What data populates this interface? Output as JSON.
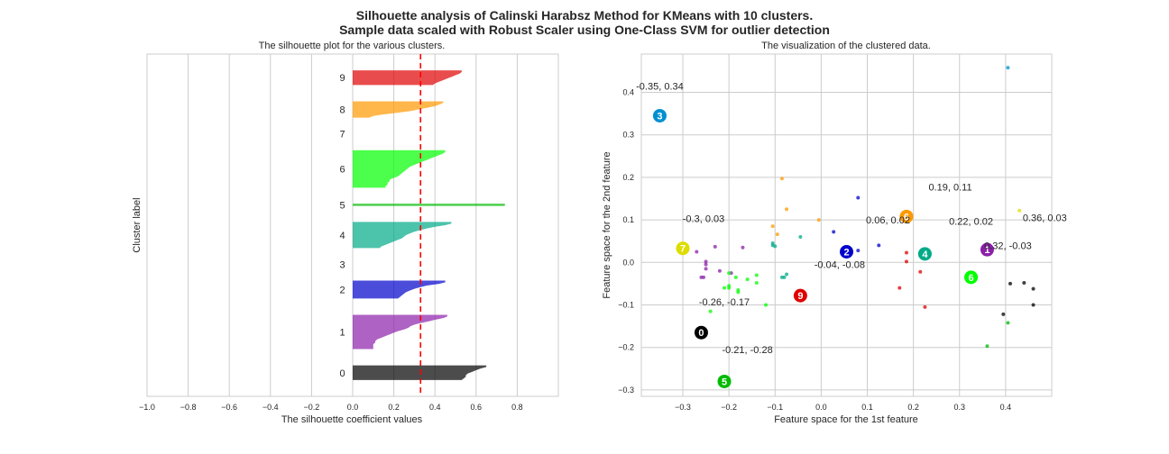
{
  "figure": {
    "title_line1": "Silhouette analysis of Calinski Harabsz Method for KMeans with 10 clusters.",
    "title_line2": "Sample data scaled with Robust Scaler using One-Class SVM for outlier detection"
  },
  "chart_data": [
    {
      "type": "bar",
      "title": "The silhouette plot for the various clusters.",
      "xlabel": "The silhouette coefficient values",
      "ylabel": "Cluster label",
      "xlim": [
        -1.0,
        1.0
      ],
      "xticks": [
        -1.0,
        -0.8,
        -0.6,
        -0.4,
        -0.2,
        0.0,
        0.2,
        0.4,
        0.6,
        0.8
      ],
      "xtick_labels": [
        "−1.0",
        "−0.8",
        "−0.6",
        "−0.4",
        "−0.2",
        "0.0",
        "0.2",
        "0.4",
        "0.6",
        "0.8"
      ],
      "grid": true,
      "average_silhouette": 0.33,
      "average_line_color": "#ff0000",
      "clusters": [
        {
          "label": "0",
          "color": "#000000",
          "values": [
            0.65,
            0.62,
            0.6,
            0.58,
            0.56,
            0.55,
            0.55,
            0.54,
            0.53
          ]
        },
        {
          "label": "1",
          "color": "#8b1fa9",
          "values": [
            0.46,
            0.44,
            0.4,
            0.37,
            0.33,
            0.3,
            0.28,
            0.27,
            0.25,
            0.22,
            0.2,
            0.18,
            0.16,
            0.14,
            0.12,
            0.11,
            0.11,
            0.1,
            0.1,
            0.1,
            0.1
          ]
        },
        {
          "label": "2",
          "color": "#0000cc",
          "values": [
            0.45,
            0.42,
            0.36,
            0.33,
            0.3,
            0.28,
            0.26,
            0.25,
            0.24,
            0.23,
            0.22
          ]
        },
        {
          "label": "3",
          "color": "#0090d0",
          "values": []
        },
        {
          "label": "4",
          "color": "#00aa88",
          "values": [
            0.48,
            0.45,
            0.4,
            0.36,
            0.33,
            0.3,
            0.28,
            0.26,
            0.25,
            0.24,
            0.22,
            0.2,
            0.18,
            0.16,
            0.14,
            0.13
          ]
        },
        {
          "label": "5",
          "color": "#00bb00",
          "values": [
            0.74
          ]
        },
        {
          "label": "6",
          "color": "#00ff00",
          "values": [
            0.45,
            0.44,
            0.42,
            0.4,
            0.38,
            0.36,
            0.34,
            0.32,
            0.3,
            0.28,
            0.27,
            0.26,
            0.25,
            0.24,
            0.23,
            0.22,
            0.2,
            0.18,
            0.18,
            0.17,
            0.17,
            0.16,
            0.16
          ]
        },
        {
          "label": "7",
          "color": "#dddd00",
          "values": []
        },
        {
          "label": "8",
          "color": "#ff9900",
          "values": [
            0.44,
            0.42,
            0.4,
            0.36,
            0.32,
            0.28,
            0.22,
            0.15,
            0.1,
            0.08
          ]
        },
        {
          "label": "9",
          "color": "#e00000",
          "values": [
            0.53,
            0.52,
            0.5,
            0.48,
            0.46,
            0.44,
            0.42,
            0.4,
            0.39
          ]
        }
      ]
    },
    {
      "type": "scatter",
      "title": "The visualization of the clustered data.",
      "xlabel": "Feature space for the 1st feature",
      "ylabel": "Feature space for the 2nd feature",
      "xlim": [
        -0.39,
        0.5
      ],
      "ylim": [
        -0.315,
        0.49
      ],
      "xticks": [
        -0.3,
        -0.2,
        -0.1,
        0.0,
        0.1,
        0.2,
        0.3,
        0.4
      ],
      "xtick_labels": [
        "−0.3",
        "−0.2",
        "−0.1",
        "0.0",
        "0.1",
        "0.2",
        "0.3",
        "0.4"
      ],
      "yticks": [
        -0.3,
        -0.2,
        -0.1,
        0.0,
        0.1,
        0.2,
        0.3,
        0.4
      ],
      "ytick_labels": [
        "−0.3",
        "−0.2",
        "−0.1",
        "0.0",
        "0.1",
        "0.2",
        "0.3",
        "0.4"
      ],
      "grid": true,
      "series": [
        {
          "cluster": "0",
          "color": "#000000",
          "points": [
            [
              0.41,
              -0.05
            ],
            [
              0.44,
              -0.048
            ],
            [
              0.46,
              -0.062
            ],
            [
              0.46,
              -0.1
            ],
            [
              0.395,
              -0.122
            ]
          ]
        },
        {
          "cluster": "1",
          "color": "#8b1fa9",
          "points": [
            [
              -0.23,
              0.037
            ],
            [
              -0.27,
              0.025
            ],
            [
              -0.25,
              0.002
            ],
            [
              -0.25,
              -0.005
            ],
            [
              -0.22,
              -0.02
            ],
            [
              -0.25,
              -0.015
            ],
            [
              -0.26,
              -0.035
            ],
            [
              -0.255,
              -0.035
            ],
            [
              -0.195,
              -0.025
            ],
            [
              -0.17,
              0.035
            ]
          ]
        },
        {
          "cluster": "2",
          "color": "#0000cc",
          "points": [
            [
              0.08,
              0.152
            ],
            [
              0.027,
              0.072
            ],
            [
              0.125,
              0.04
            ],
            [
              0.08,
              0.028
            ]
          ]
        },
        {
          "cluster": "3",
          "color": "#0090d0",
          "points": [
            [
              0.405,
              0.458
            ]
          ]
        },
        {
          "cluster": "4",
          "color": "#00aa88",
          "points": [
            [
              -0.105,
              0.04
            ],
            [
              -0.1,
              0.038
            ],
            [
              -0.105,
              0.045
            ],
            [
              -0.045,
              0.06
            ],
            [
              -0.085,
              -0.035
            ],
            [
              -0.075,
              -0.028
            ],
            [
              -0.08,
              -0.035
            ]
          ]
        },
        {
          "cluster": "5",
          "color": "#00bb00",
          "points": [
            [
              0.36,
              -0.197
            ],
            [
              0.405,
              -0.142
            ]
          ]
        },
        {
          "cluster": "6",
          "color": "#00ff00",
          "points": [
            [
              -0.2,
              -0.025
            ],
            [
              -0.18,
              -0.07
            ],
            [
              -0.18,
              -0.065
            ],
            [
              -0.2,
              -0.055
            ],
            [
              -0.185,
              -0.035
            ],
            [
              -0.16,
              -0.04
            ],
            [
              -0.14,
              -0.03
            ],
            [
              -0.14,
              -0.048
            ],
            [
              -0.2,
              -0.06
            ],
            [
              -0.24,
              -0.115
            ],
            [
              -0.12,
              -0.1
            ],
            [
              -0.21,
              -0.06
            ]
          ]
        },
        {
          "cluster": "7",
          "color": "#dddd00",
          "points": [
            [
              0.43,
              0.122
            ]
          ]
        },
        {
          "cluster": "8",
          "color": "#ff9900",
          "points": [
            [
              -0.085,
              0.197
            ],
            [
              -0.075,
              0.125
            ],
            [
              -0.105,
              0.085
            ],
            [
              -0.095,
              0.066
            ],
            [
              -0.005,
              0.1
            ]
          ]
        },
        {
          "cluster": "9",
          "color": "#e00000",
          "points": [
            [
              0.185,
              0.023
            ],
            [
              0.225,
              -0.105
            ],
            [
              0.215,
              -0.022
            ],
            [
              0.17,
              -0.06
            ],
            [
              0.185,
              0.002
            ]
          ]
        }
      ],
      "centers": [
        {
          "label": "0",
          "x": -0.26,
          "y": -0.165,
          "color": "#000000"
        },
        {
          "label": "1",
          "x": 0.36,
          "y": 0.03,
          "color": "#8b1fa9"
        },
        {
          "label": "2",
          "x": 0.055,
          "y": 0.025,
          "color": "#0000cc"
        },
        {
          "label": "3",
          "x": -0.35,
          "y": 0.345,
          "color": "#0090d0"
        },
        {
          "label": "4",
          "x": 0.225,
          "y": 0.02,
          "color": "#00aa88"
        },
        {
          "label": "5",
          "x": -0.21,
          "y": -0.28,
          "color": "#00bb00"
        },
        {
          "label": "6",
          "x": 0.185,
          "y": 0.108,
          "color": "#ff9900"
        },
        {
          "label": "6",
          "x": 0.325,
          "y": -0.035,
          "color": "#00ff00"
        },
        {
          "label": "7",
          "x": -0.3,
          "y": 0.033,
          "color": "#dddd00"
        },
        {
          "label": "9",
          "x": -0.045,
          "y": -0.078,
          "color": "#e00000"
        }
      ],
      "annotations": [
        {
          "text": "-0.35, 0.34",
          "x": -0.35,
          "y": 0.415
        },
        {
          "text": "-0.3, 0.03",
          "x": -0.255,
          "y": 0.103
        },
        {
          "text": "-0.26, -0.17",
          "x": -0.21,
          "y": -0.093
        },
        {
          "text": "-0.21, -0.28",
          "x": -0.16,
          "y": -0.205
        },
        {
          "text": "-0.04, -0.08",
          "x": 0.04,
          "y": -0.005
        },
        {
          "text": "0.06, 0.02",
          "x": 0.145,
          "y": 0.1
        },
        {
          "text": "0.19, 0.11",
          "x": 0.28,
          "y": 0.178
        },
        {
          "text": "0.22, 0.02",
          "x": 0.325,
          "y": 0.097
        },
        {
          "text": "0.32, -0.03",
          "x": 0.405,
          "y": 0.04
        },
        {
          "text": "0.36, 0.03",
          "x": 0.485,
          "y": 0.105
        }
      ]
    }
  ]
}
